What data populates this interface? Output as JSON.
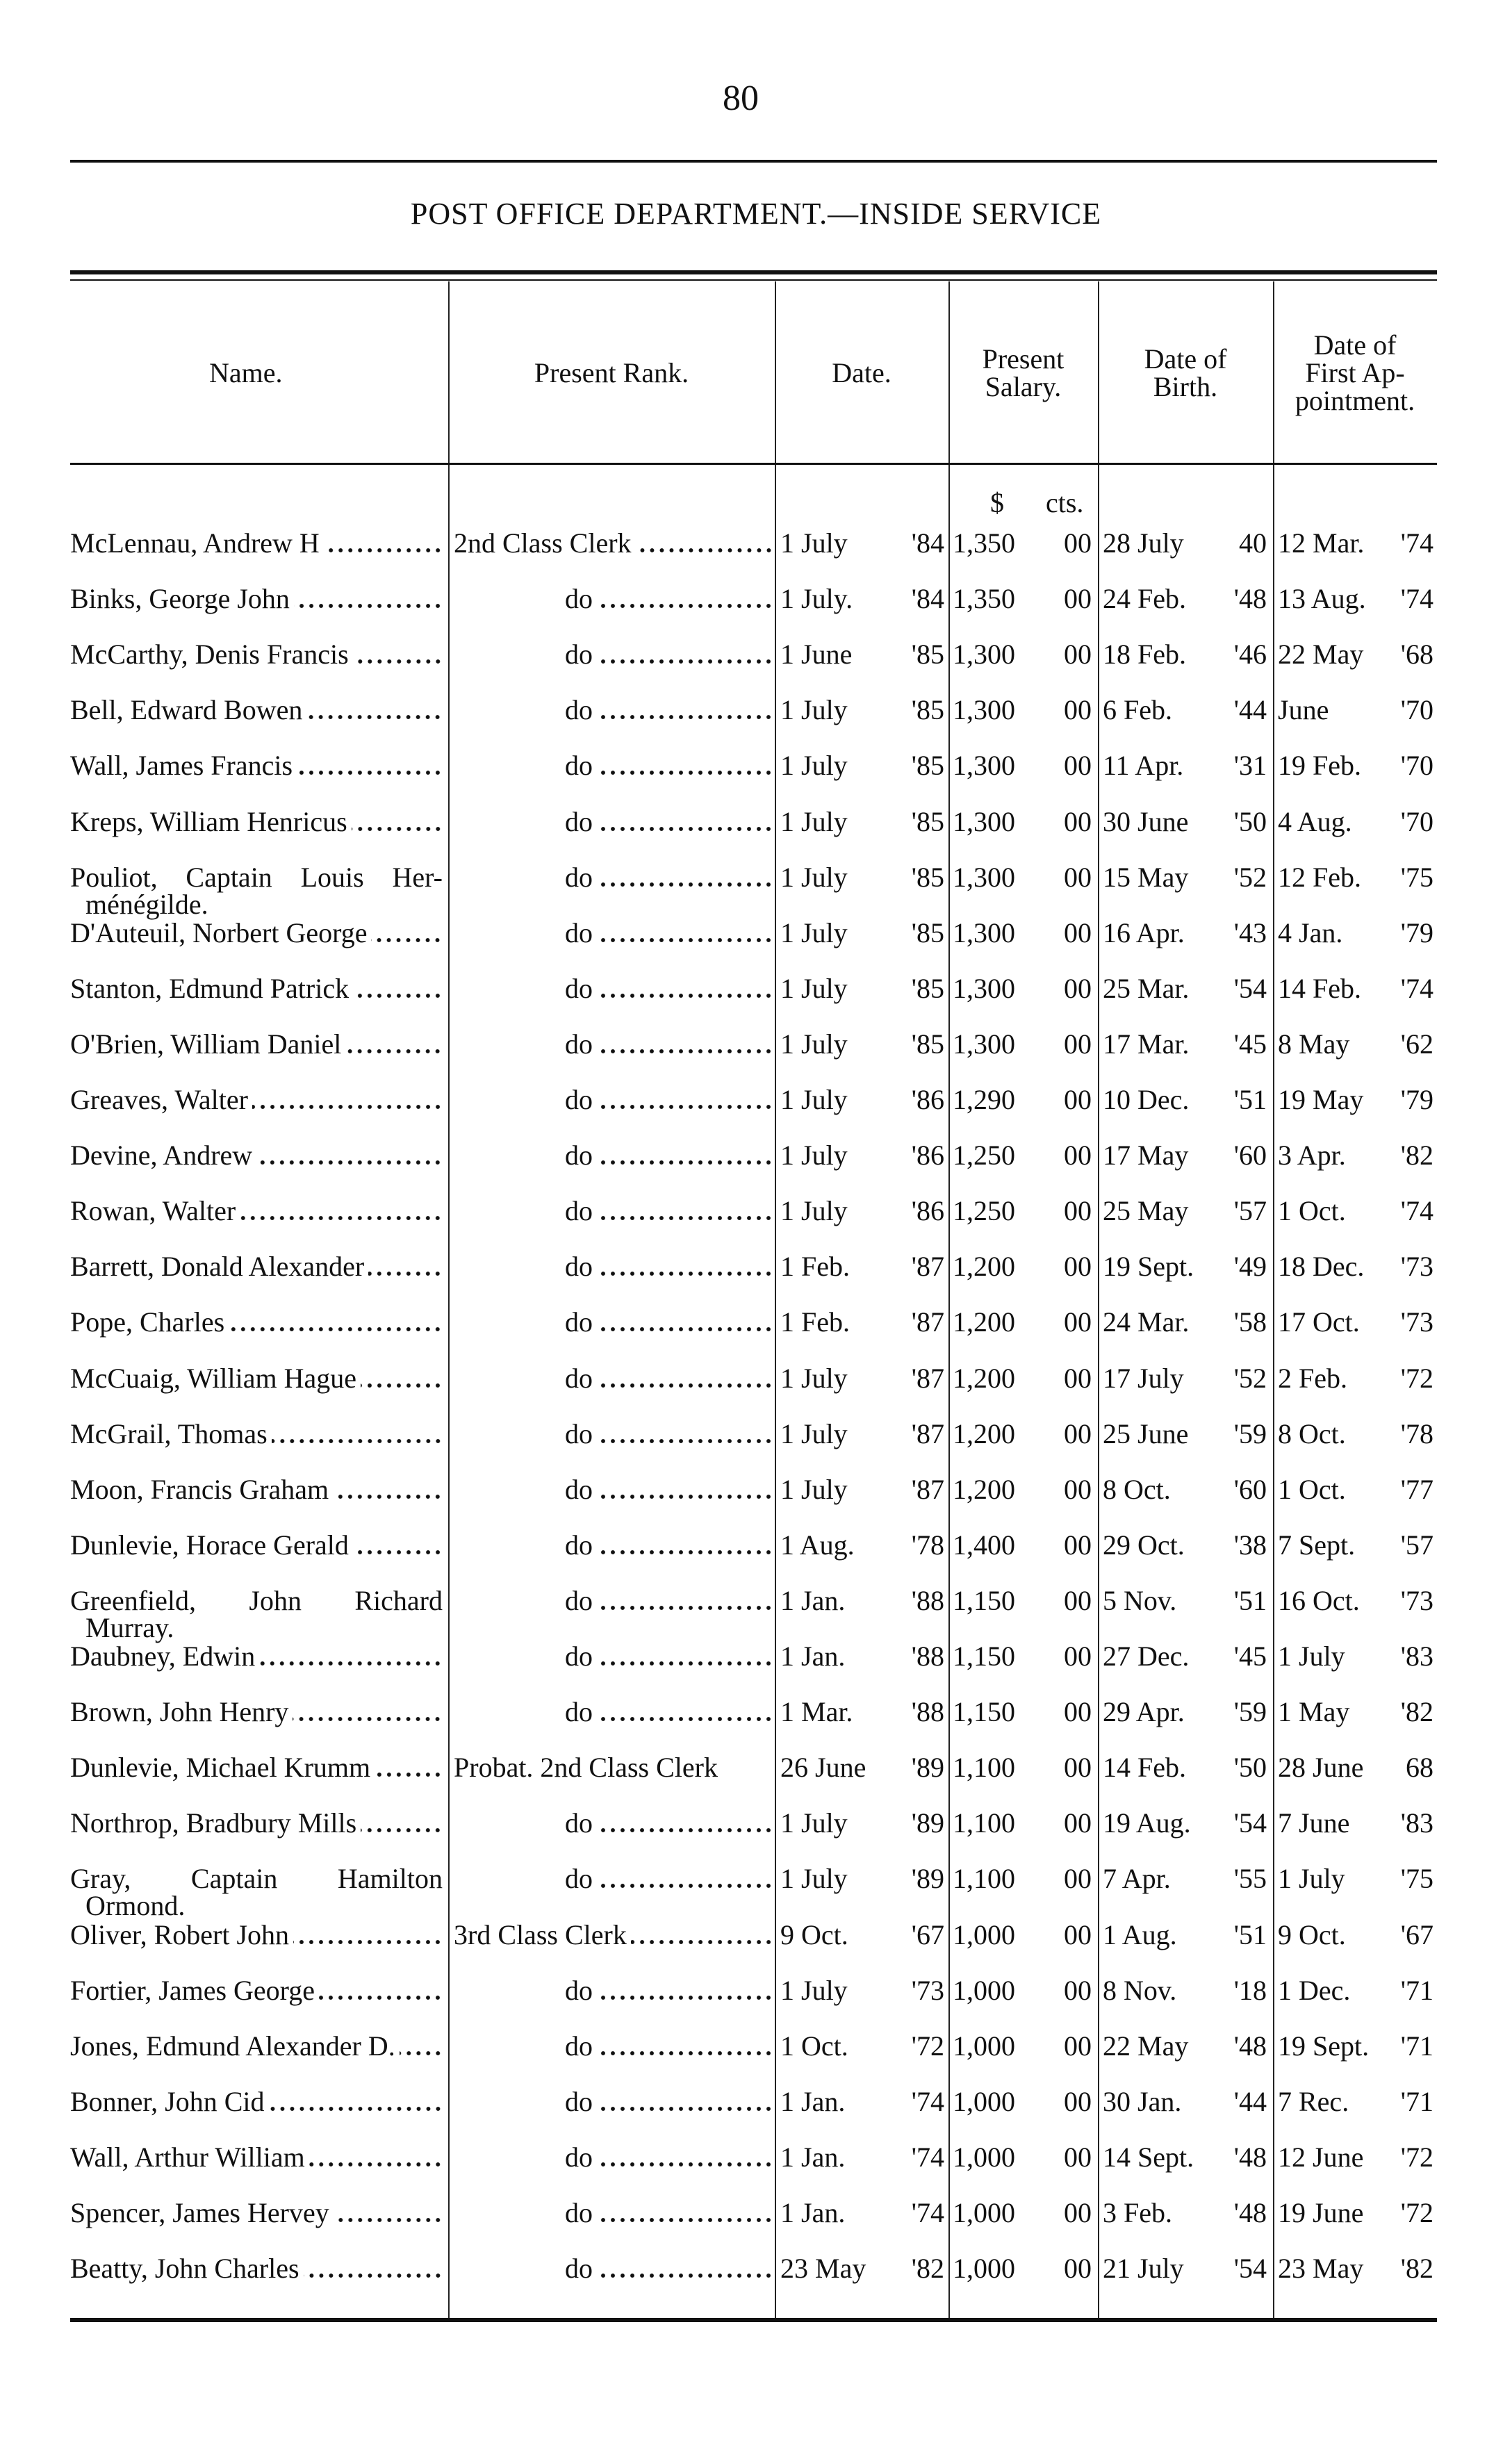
{
  "page_number": "80",
  "title": "POST OFFICE DEPARTMENT.—INSIDE SERVICE",
  "headers": {
    "name": "Name.",
    "rank": "Present Rank.",
    "date": "Date.",
    "salary": [
      "Present",
      "Salary."
    ],
    "birth": [
      "Date of",
      "Birth."
    ],
    "first_appointment": [
      "Date of",
      "First Ap-",
      "pointment."
    ]
  },
  "salary_units": {
    "dollars": "$",
    "cents": "cts."
  },
  "rows": [
    {
      "name": "McLennau, Andrew H",
      "rank": "2nd Class Clerk",
      "date": "1 July '84",
      "salary": "1,350",
      "cents": "00",
      "birth": "28 July 40",
      "first": "12 Mar. '74"
    },
    {
      "name": "Binks, George John",
      "rank": "do",
      "date": "1 July. '84",
      "salary": "1,350",
      "cents": "00",
      "birth": "24 Feb. '48",
      "first": "13 Aug. '74"
    },
    {
      "name": "McCarthy, Denis Francis",
      "rank": "do",
      "date": "1 June '85",
      "salary": "1,300",
      "cents": "00",
      "birth": "18 Feb. '46",
      "first": "22 May '68"
    },
    {
      "name": "Bell, Edward Bowen",
      "rank": "do",
      "date": "1 July '85",
      "salary": "1,300",
      "cents": "00",
      "birth": "6 Feb. '44",
      "first": "June '70"
    },
    {
      "name": "Wall, James Francis",
      "rank": "do",
      "date": "1 July '85",
      "salary": "1,300",
      "cents": "00",
      "birth": "11 Apr. '31",
      "first": "19 Feb. '70"
    },
    {
      "name": "Kreps, William Henricus",
      "rank": "do",
      "date": "1 July '85",
      "salary": "1,300",
      "cents": "00",
      "birth": "30 June '50",
      "first": "4 Aug. '70"
    },
    {
      "name": "Pouliot, Captain Louis Her-",
      "name_cont": "ménégilde.",
      "rank": "do",
      "date": "1 July '85",
      "salary": "1,300",
      "cents": "00",
      "birth": "15 May '52",
      "first": "12 Feb. '75"
    },
    {
      "name": "D'Auteuil, Norbert George",
      "rank": "do",
      "date": "1 July '85",
      "salary": "1,300",
      "cents": "00",
      "birth": "16 Apr. '43",
      "first": "4 Jan. '79"
    },
    {
      "name": "Stanton, Edmund Patrick",
      "rank": "do",
      "date": "1 July '85",
      "salary": "1,300",
      "cents": "00",
      "birth": "25 Mar. '54",
      "first": "14 Feb. '74"
    },
    {
      "name": "O'Brien, William Daniel",
      "rank": "do",
      "date": "1 July '85",
      "salary": "1,300",
      "cents": "00",
      "birth": "17 Mar. '45",
      "first": "8 May '62"
    },
    {
      "name": "Greaves, Walter",
      "rank": "do",
      "date": "1 July '86",
      "salary": "1,290",
      "cents": "00",
      "birth": "10 Dec. '51",
      "first": "19 May '79"
    },
    {
      "name": "Devine, Andrew",
      "rank": "do",
      "date": "1 July '86",
      "salary": "1,250",
      "cents": "00",
      "birth": "17 May '60",
      "first": "3 Apr. '82"
    },
    {
      "name": "Rowan, Walter",
      "rank": "do",
      "date": "1 July '86",
      "salary": "1,250",
      "cents": "00",
      "birth": "25 May '57",
      "first": "1 Oct. '74"
    },
    {
      "name": "Barrett, Donald Alexander",
      "rank": "do",
      "date": "1 Feb. '87",
      "salary": "1,200",
      "cents": "00",
      "birth": "19 Sept. '49",
      "first": "18 Dec. '73"
    },
    {
      "name": "Pope, Charles",
      "rank": "do",
      "date": "1 Feb. '87",
      "salary": "1,200",
      "cents": "00",
      "birth": "24 Mar. '58",
      "first": "17 Oct. '73"
    },
    {
      "name": "McCuaig, William Hague",
      "rank": "do",
      "date": "1 July '87",
      "salary": "1,200",
      "cents": "00",
      "birth": "17 July '52",
      "first": "2 Feb. '72"
    },
    {
      "name": "McGrail, Thomas",
      "rank": "do",
      "date": "1 July '87",
      "salary": "1,200",
      "cents": "00",
      "birth": "25 June '59",
      "first": "8 Oct. '78"
    },
    {
      "name": "Moon, Francis Graham",
      "rank": "do",
      "date": "1 July '87",
      "salary": "1,200",
      "cents": "00",
      "birth": "8 Oct. '60",
      "first": "1 Oct. '77"
    },
    {
      "name": "Dunlevie, Horace Gerald",
      "rank": "do",
      "date": "1 Aug. '78",
      "salary": "1,400",
      "cents": "00",
      "birth": "29 Oct. '38",
      "first": "7 Sept. '57"
    },
    {
      "name": "Greenfield, John Richard",
      "name_cont": "Murray.",
      "rank": "do",
      "date": "1 Jan. '88",
      "salary": "1,150",
      "cents": "00",
      "birth": "5 Nov. '51",
      "first": "16 Oct. '73"
    },
    {
      "name": "Daubney, Edwin",
      "rank": "do",
      "date": "1 Jan. '88",
      "salary": "1,150",
      "cents": "00",
      "birth": "27 Dec. '45",
      "first": "1 July '83"
    },
    {
      "name": "Brown, John Henry",
      "rank": "do",
      "date": "1 Mar. '88",
      "salary": "1,150",
      "cents": "00",
      "birth": "29 Apr. '59",
      "first": "1 May '82"
    },
    {
      "name": "Dunlevie, Michael Krumm",
      "rank": "Probat. 2nd Class Clerk",
      "date": "26 June '89",
      "salary": "1,100",
      "cents": "00",
      "birth": "14 Feb. '50",
      "first": "28 June 68"
    },
    {
      "name": "Northrop, Bradbury Mills",
      "rank": "do",
      "date": "1 July '89",
      "salary": "1,100",
      "cents": "00",
      "birth": "19 Aug. '54",
      "first": "7 June '83"
    },
    {
      "name": "Gray, Captain Hamilton",
      "name_cont": "Ormond.",
      "rank": "do",
      "date": "1 July '89",
      "salary": "1,100",
      "cents": "00",
      "birth": "7 Apr. '55",
      "first": "1 July '75"
    },
    {
      "name": "Oliver, Robert John",
      "rank": "3rd Class Clerk",
      "date": "9 Oct. '67",
      "salary": "1,000",
      "cents": "00",
      "birth": "1 Aug. '51",
      "first": "9 Oct. '67"
    },
    {
      "name": "Fortier, James George",
      "rank": "do",
      "date": "1 July '73",
      "salary": "1,000",
      "cents": "00",
      "birth": "8 Nov. '18",
      "first": "1 Dec. '71"
    },
    {
      "name": "Jones, Edmund Alexander D.",
      "rank": "do",
      "date": "1 Oct. '72",
      "salary": "1,000",
      "cents": "00",
      "birth": "22 May '48",
      "first": "19 Sept. '71"
    },
    {
      "name": "Bonner, John Cid",
      "rank": "do",
      "date": "1 Jan. '74",
      "salary": "1,000",
      "cents": "00",
      "birth": "30 Jan. '44",
      "first": "7 Rec. '71"
    },
    {
      "name": "Wall, Arthur William",
      "rank": "do",
      "date": "1 Jan. '74",
      "salary": "1,000",
      "cents": "00",
      "birth": "14 Sept. '48",
      "first": "12 June '72"
    },
    {
      "name": "Spencer, James Hervey",
      "rank": "do",
      "date": "1 Jan. '74",
      "salary": "1,000",
      "cents": "00",
      "birth": "3 Feb. '48",
      "first": "19 June '72"
    },
    {
      "name": "Beatty, John Charles",
      "rank": "do",
      "date": "23 May '82",
      "salary": "1,000",
      "cents": "00",
      "birth": "21 July '54",
      "first": "23 May '82"
    }
  ]
}
